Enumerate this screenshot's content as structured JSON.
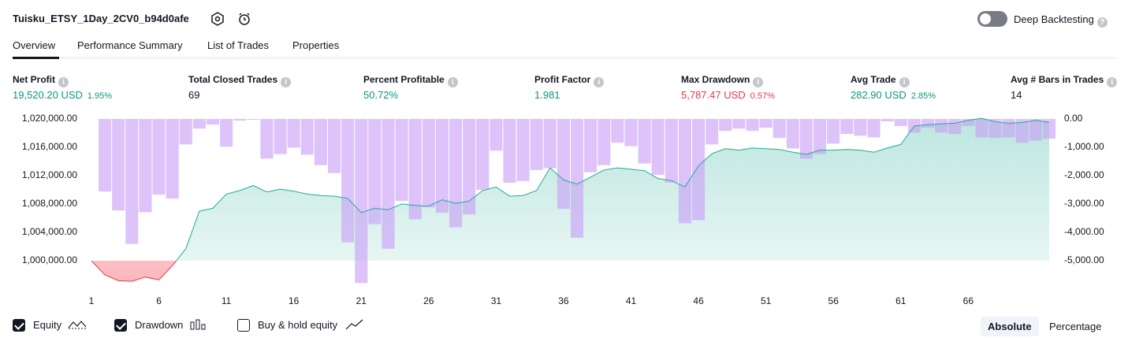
{
  "header": {
    "title": "Tuisku_ETSY_1Day_2CV0_b94d0afe",
    "toggle": "Deep Backtesting",
    "tabs": [
      "Overview",
      "Performance Summary",
      "List of Trades",
      "Properties"
    ]
  },
  "metrics": [
    {
      "label": "Net Profit",
      "value": "19,520.20 USD",
      "percent": "1.95%"
    },
    {
      "label": "Total Closed Trades",
      "value": "69"
    },
    {
      "label": "Percent Profitable",
      "value": "50.72%"
    },
    {
      "label": "Profit Factor",
      "value": "1.981"
    },
    {
      "label": "Max Drawdown",
      "value": "5,787.47 USD",
      "percent": "0.57%"
    },
    {
      "label": "Avg Trade",
      "value": "282.90 USD",
      "percent": "2.85%"
    },
    {
      "label": "Avg # Bars in Trades",
      "value": "14"
    }
  ],
  "chart_data": {
    "type": "line",
    "x": [
      1,
      2,
      3,
      4,
      5,
      6,
      7,
      8,
      9,
      10,
      11,
      12,
      13,
      14,
      15,
      16,
      17,
      18,
      19,
      20,
      21,
      22,
      23,
      24,
      25,
      26,
      27,
      28,
      29,
      30,
      31,
      32,
      33,
      34,
      35,
      36,
      37,
      38,
      39,
      40,
      41,
      42,
      43,
      44,
      45,
      46,
      47,
      48,
      49,
      50,
      51,
      52,
      53,
      54,
      55,
      56,
      57,
      58,
      59,
      60,
      61,
      62,
      63,
      64,
      65,
      66,
      67,
      68,
      69,
      70,
      71,
      72
    ],
    "xlim": [
      1,
      72
    ],
    "xticks": [
      1,
      6,
      11,
      16,
      21,
      26,
      31,
      36,
      41,
      46,
      51,
      56,
      61,
      66
    ],
    "ylim": [
      996000,
      1020000
    ],
    "yticks": [
      {
        "value": 1000000,
        "label": "1,000,000.00"
      },
      {
        "value": 1004000,
        "label": "1,004,000.00"
      },
      {
        "value": 1008000,
        "label": "1,008,000.00"
      },
      {
        "value": 1012000,
        "label": "1,012,000.00"
      },
      {
        "value": 1016000,
        "label": "1,016,000.00"
      },
      {
        "value": 1020000,
        "label": "1,020,000.00"
      }
    ],
    "y2lim": [
      -6000,
      0
    ],
    "y2ticks": [
      {
        "value": 0,
        "label": "0.00"
      },
      {
        "value": -1000,
        "label": "-1,000.00"
      },
      {
        "value": -2000,
        "label": "-2,000.00"
      },
      {
        "value": -3000,
        "label": "-3,000.00"
      },
      {
        "value": -4000,
        "label": "-4,000.00"
      },
      {
        "value": -5000,
        "label": "-5,000.00"
      }
    ],
    "series": [
      {
        "name": "Equity",
        "type": "line",
        "color": "#22ab94",
        "negative_color": "#f23645",
        "values": [
          1000000,
          998000,
          997200,
          997100,
          997700,
          997300,
          999300,
          1001700,
          1007000,
          1007400,
          1009400,
          1009900,
          1010600,
          1009700,
          1010100,
          1009800,
          1009400,
          1009200,
          1009100,
          1008800,
          1006800,
          1007400,
          1007200,
          1008000,
          1007800,
          1007700,
          1008600,
          1008100,
          1008400,
          1009900,
          1010400,
          1009100,
          1009200,
          1009900,
          1013100,
          1011400,
          1010800,
          1011800,
          1012800,
          1013100,
          1012900,
          1012700,
          1011600,
          1011300,
          1010400,
          1013400,
          1015100,
          1015800,
          1015600,
          1015900,
          1015800,
          1015700,
          1015300,
          1015000,
          1015600,
          1015600,
          1015700,
          1015600,
          1015300,
          1015900,
          1016400,
          1019000,
          1019200,
          1019300,
          1019400,
          1019800,
          1020100,
          1019600,
          1019400,
          1019500,
          1019800,
          1019520
        ]
      },
      {
        "name": "Drawdown",
        "type": "bar",
        "axis": "y2",
        "color": "#c89ef7",
        "values": [
          null,
          -2560,
          -3230,
          -4410,
          -3290,
          -2670,
          -2810,
          -900,
          -340,
          -200,
          -980,
          -60,
          -30,
          -1400,
          -1240,
          -1010,
          -1260,
          -1630,
          -1910,
          -4350,
          -5787,
          -3710,
          -4580,
          -2890,
          -3540,
          -3120,
          -3310,
          -3820,
          -3370,
          -2500,
          -1120,
          -2250,
          -2190,
          -1800,
          -1740,
          -3170,
          -4190,
          -1880,
          -1630,
          -840,
          -960,
          -1570,
          -1970,
          -2250,
          -3680,
          -3570,
          -900,
          -420,
          -340,
          -420,
          -310,
          -670,
          -1040,
          -1400,
          -1240,
          -870,
          -530,
          -590,
          -650,
          -80,
          -250,
          -480,
          -310,
          -480,
          -530,
          -250,
          -650,
          -670,
          -650,
          -840,
          -760,
          -700
        ]
      }
    ],
    "legend": [
      {
        "name": "Equity",
        "checked": true
      },
      {
        "name": "Drawdown",
        "checked": true
      },
      {
        "name": "Buy & hold equity",
        "checked": false
      }
    ]
  },
  "buttons": [
    "Absolute",
    "Percentage"
  ]
}
